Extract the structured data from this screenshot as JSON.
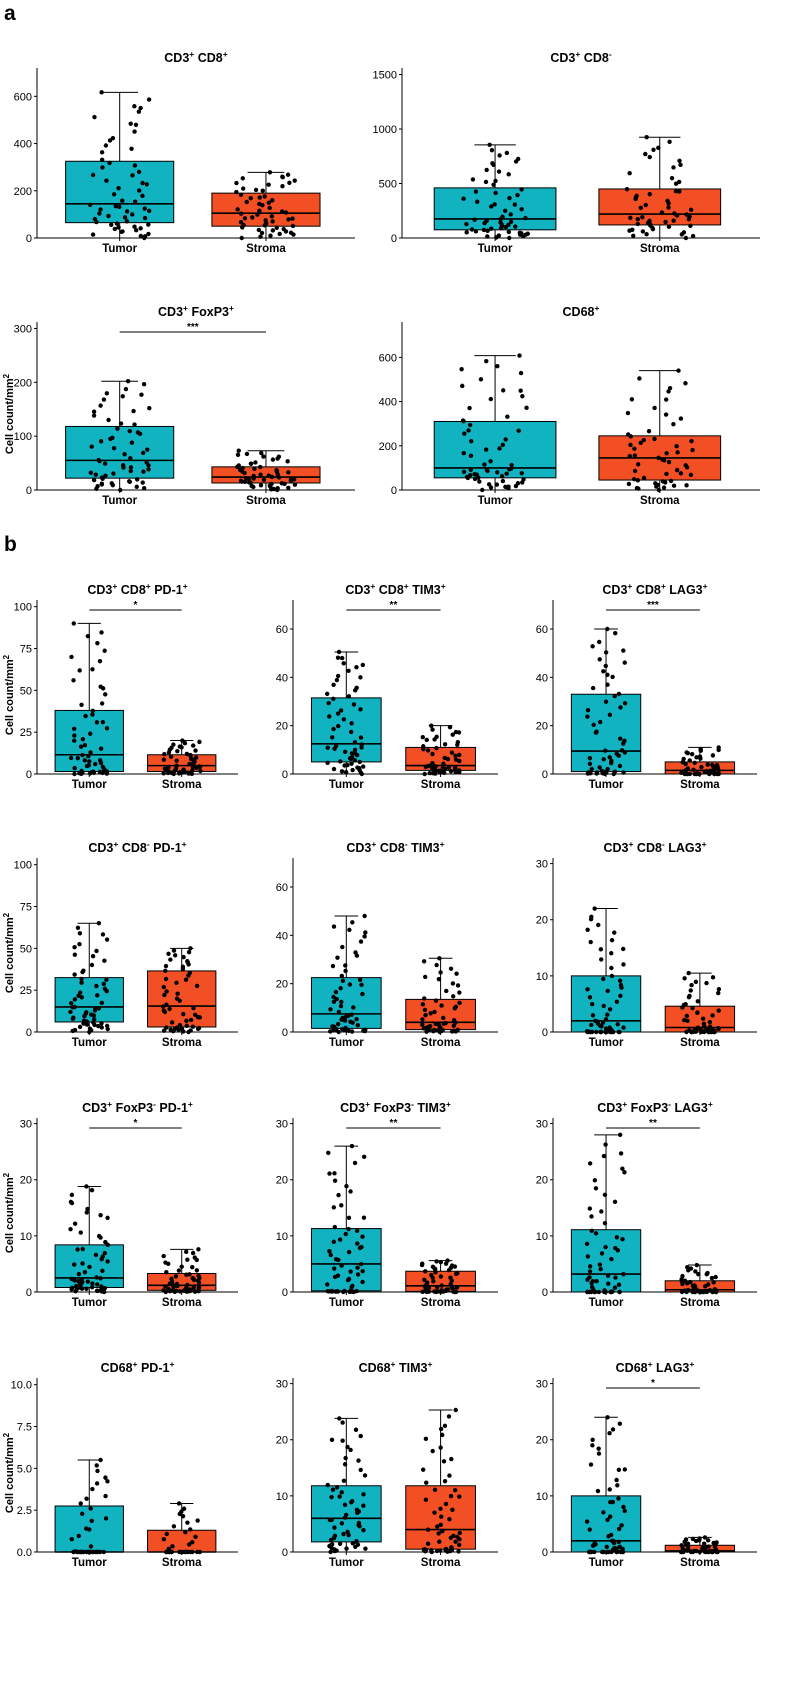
{
  "figure": {
    "panel_a_label": "a",
    "panel_b_label": "b"
  },
  "colors": {
    "tumor": "#12b3c0",
    "stroma": "#f24f25",
    "point": "#000000",
    "axis": "#000000"
  },
  "chart_data": [
    {
      "id": "a1",
      "type": "box",
      "title": "CD3+ CD8+",
      "title_parts": [
        [
          "CD3",
          ""
        ],
        [
          "+",
          "sup"
        ],
        [
          " CD8",
          ""
        ],
        [
          "+",
          "sup"
        ]
      ],
      "ylabel": "",
      "ylim": [
        0,
        720
      ],
      "yticks": [
        0,
        200,
        400,
        600
      ],
      "categories": [
        "Tumor",
        "Stroma"
      ],
      "boxes": [
        {
          "name": "Tumor",
          "min": 0,
          "q1": 65,
          "median": 145,
          "q3": 325,
          "max": 617,
          "n": 60
        },
        {
          "name": "Stroma",
          "min": 0,
          "q1": 50,
          "median": 105,
          "q3": 190,
          "max": 278,
          "n": 55
        }
      ],
      "significance": ""
    },
    {
      "id": "a2",
      "type": "box",
      "title": "CD3+ CD8-",
      "title_parts": [
        [
          "CD3",
          ""
        ],
        [
          "+",
          "sup"
        ],
        [
          " CD8",
          ""
        ],
        [
          "-",
          "sup"
        ]
      ],
      "ylabel": "",
      "ylim": [
        0,
        1560
      ],
      "yticks": [
        0,
        500,
        1000,
        1500
      ],
      "categories": [
        "Tumor",
        "Stroma"
      ],
      "boxes": [
        {
          "name": "Tumor",
          "min": 0,
          "q1": 75,
          "median": 175,
          "q3": 460,
          "max": 855,
          "n": 60
        },
        {
          "name": "Stroma",
          "min": 0,
          "q1": 120,
          "median": 220,
          "q3": 450,
          "max": 925,
          "n": 55
        }
      ],
      "significance": ""
    },
    {
      "id": "a3",
      "type": "box",
      "title": "CD3+ FoxP3+",
      "title_parts": [
        [
          "CD3",
          ""
        ],
        [
          "+",
          "sup"
        ],
        [
          " FoxP3",
          ""
        ],
        [
          "+",
          "sup"
        ]
      ],
      "ylabel": "Cell count/mm2",
      "ylim": [
        0,
        312
      ],
      "yticks": [
        0,
        100,
        200,
        300
      ],
      "categories": [
        "Tumor",
        "Stroma"
      ],
      "boxes": [
        {
          "name": "Tumor",
          "min": 0,
          "q1": 22,
          "median": 55,
          "q3": 118,
          "max": 202,
          "n": 60
        },
        {
          "name": "Stroma",
          "min": 0,
          "q1": 13,
          "median": 24,
          "q3": 43,
          "max": 73,
          "n": 55
        }
      ],
      "significance": "***"
    },
    {
      "id": "a4",
      "type": "box",
      "title": "CD68+",
      "title_parts": [
        [
          "CD68",
          ""
        ],
        [
          "+",
          "sup"
        ]
      ],
      "ylabel": "",
      "ylim": [
        0,
        760
      ],
      "yticks": [
        0,
        200,
        400,
        600
      ],
      "categories": [
        "Tumor",
        "Stroma"
      ],
      "boxes": [
        {
          "name": "Tumor",
          "min": 0,
          "q1": 55,
          "median": 100,
          "q3": 310,
          "max": 608,
          "n": 60
        },
        {
          "name": "Stroma",
          "min": 0,
          "q1": 45,
          "median": 145,
          "q3": 245,
          "max": 540,
          "n": 55
        }
      ],
      "significance": ""
    },
    {
      "id": "b1",
      "type": "box",
      "title": "CD3+ CD8+ PD-1+",
      "title_parts": [
        [
          "CD3",
          ""
        ],
        [
          "+",
          "sup"
        ],
        [
          " CD8",
          ""
        ],
        [
          "+",
          "sup"
        ],
        [
          " PD-1",
          ""
        ],
        [
          "+",
          "sup"
        ]
      ],
      "ylabel": "Cell count/mm2",
      "ylim": [
        0,
        104
      ],
      "yticks": [
        0,
        25,
        50,
        75,
        100
      ],
      "ytick_labels": [
        "0",
        "25",
        "50",
        "75",
        "100"
      ],
      "categories": [
        "Tumor",
        "Stroma"
      ],
      "boxes": [
        {
          "name": "Tumor",
          "min": 0,
          "q1": 1.5,
          "median": 11.5,
          "q3": 38,
          "max": 90,
          "n": 60
        },
        {
          "name": "Stroma",
          "min": 0,
          "q1": 1.5,
          "median": 5,
          "q3": 11.5,
          "max": 20,
          "n": 55
        }
      ],
      "significance": "*"
    },
    {
      "id": "b2",
      "type": "box",
      "title": "CD3+ CD8+ TIM3+",
      "title_parts": [
        [
          "CD3",
          ""
        ],
        [
          "+",
          "sup"
        ],
        [
          " CD8",
          ""
        ],
        [
          "+",
          "sup"
        ],
        [
          " TIM3",
          ""
        ],
        [
          "+",
          "sup"
        ]
      ],
      "ylabel": "",
      "ylim": [
        0,
        72
      ],
      "yticks": [
        0,
        20,
        40,
        60
      ],
      "ytick_labels": [
        "0",
        "20",
        "40",
        "60"
      ],
      "categories": [
        "Tumor",
        "Stroma"
      ],
      "boxes": [
        {
          "name": "Tumor",
          "min": 0,
          "q1": 5,
          "median": 12.5,
          "q3": 31.5,
          "max": 50.5,
          "n": 60
        },
        {
          "name": "Stroma",
          "min": 0,
          "q1": 1.5,
          "median": 3.5,
          "q3": 11,
          "max": 20,
          "n": 55
        }
      ],
      "significance": "**"
    },
    {
      "id": "b3",
      "type": "box",
      "title": "CD3+ CD8+ LAG3+",
      "title_parts": [
        [
          "CD3",
          ""
        ],
        [
          "+",
          "sup"
        ],
        [
          " CD8",
          ""
        ],
        [
          "+",
          "sup"
        ],
        [
          " LAG3",
          ""
        ],
        [
          "+",
          "sup"
        ]
      ],
      "ylabel": "",
      "ylim": [
        0,
        72
      ],
      "yticks": [
        0,
        20,
        40,
        60
      ],
      "ytick_labels": [
        "0",
        "20",
        "40",
        "60"
      ],
      "categories": [
        "Tumor",
        "Stroma"
      ],
      "boxes": [
        {
          "name": "Tumor",
          "min": 0,
          "q1": 1,
          "median": 9.5,
          "q3": 33,
          "max": 60,
          "n": 60
        },
        {
          "name": "Stroma",
          "min": 0,
          "q1": 0,
          "median": 1.5,
          "q3": 5,
          "max": 11,
          "n": 55
        }
      ],
      "significance": "***"
    },
    {
      "id": "b4",
      "type": "box",
      "title": "CD3+ CD8- PD-1+",
      "title_parts": [
        [
          "CD3",
          ""
        ],
        [
          "+",
          "sup"
        ],
        [
          " CD8",
          ""
        ],
        [
          "-",
          "sup"
        ],
        [
          " PD-1",
          ""
        ],
        [
          "+",
          "sup"
        ]
      ],
      "ylabel": "Cell count/mm2",
      "ylim": [
        0,
        104
      ],
      "yticks": [
        0,
        25,
        50,
        75,
        100
      ],
      "ytick_labels": [
        "0",
        "25",
        "50",
        "75",
        "100"
      ],
      "categories": [
        "Tumor",
        "Stroma"
      ],
      "boxes": [
        {
          "name": "Tumor",
          "min": 0,
          "q1": 6,
          "median": 15,
          "q3": 32.5,
          "max": 65,
          "n": 60
        },
        {
          "name": "Stroma",
          "min": 0,
          "q1": 3,
          "median": 15.5,
          "q3": 36.5,
          "max": 50,
          "n": 55
        }
      ],
      "significance": ""
    },
    {
      "id": "b5",
      "type": "box",
      "title": "CD3+ CD8- TIM3+",
      "title_parts": [
        [
          "CD3",
          ""
        ],
        [
          "+",
          "sup"
        ],
        [
          " CD8",
          ""
        ],
        [
          "-",
          "sup"
        ],
        [
          " TIM3",
          ""
        ],
        [
          "+",
          "sup"
        ]
      ],
      "ylabel": "",
      "ylim": [
        0,
        72
      ],
      "yticks": [
        0,
        20,
        40,
        60
      ],
      "ytick_labels": [
        "0",
        "20",
        "40",
        "60"
      ],
      "categories": [
        "Tumor",
        "Stroma"
      ],
      "boxes": [
        {
          "name": "Tumor",
          "min": 0,
          "q1": 1.5,
          "median": 7.5,
          "q3": 22.5,
          "max": 48,
          "n": 60
        },
        {
          "name": "Stroma",
          "min": 0,
          "q1": 1,
          "median": 4,
          "q3": 13.5,
          "max": 30.5,
          "n": 55
        }
      ],
      "significance": ""
    },
    {
      "id": "b6",
      "type": "box",
      "title": "CD3+ CD8- LAG3+",
      "title_parts": [
        [
          "CD3",
          ""
        ],
        [
          "+",
          "sup"
        ],
        [
          " CD8",
          ""
        ],
        [
          "-",
          "sup"
        ],
        [
          " LAG3",
          ""
        ],
        [
          "+",
          "sup"
        ]
      ],
      "ylabel": "",
      "ylim": [
        0,
        31
      ],
      "yticks": [
        0,
        10,
        20,
        30
      ],
      "ytick_labels": [
        "0",
        "10",
        "20",
        "30"
      ],
      "categories": [
        "Tumor",
        "Stroma"
      ],
      "boxes": [
        {
          "name": "Tumor",
          "min": 0,
          "q1": 0,
          "median": 2,
          "q3": 10,
          "max": 22,
          "n": 60
        },
        {
          "name": "Stroma",
          "min": 0,
          "q1": 0,
          "median": 0.8,
          "q3": 4.6,
          "max": 10.5,
          "n": 55
        }
      ],
      "significance": ""
    },
    {
      "id": "b7",
      "type": "box",
      "title": "CD3+ FoxP3- PD-1+",
      "title_parts": [
        [
          "CD3",
          ""
        ],
        [
          "+",
          "sup"
        ],
        [
          " FoxP3",
          ""
        ],
        [
          "-",
          "sup"
        ],
        [
          " PD-1",
          ""
        ],
        [
          "+",
          "sup"
        ]
      ],
      "ylabel": "Cell count/mm2",
      "ylim": [
        0,
        31
      ],
      "yticks": [
        0,
        10,
        20,
        30
      ],
      "ytick_labels": [
        "0",
        "10",
        "20",
        "30"
      ],
      "categories": [
        "Tumor",
        "Stroma"
      ],
      "boxes": [
        {
          "name": "Tumor",
          "min": 0,
          "q1": 0.8,
          "median": 2.5,
          "q3": 8.4,
          "max": 18.8,
          "n": 60
        },
        {
          "name": "Stroma",
          "min": 0,
          "q1": 0.3,
          "median": 1.2,
          "q3": 3.3,
          "max": 7.6,
          "n": 55
        }
      ],
      "significance": "*"
    },
    {
      "id": "b8",
      "type": "box",
      "title": "CD3+ FoxP3- TIM3+",
      "title_parts": [
        [
          "CD3",
          ""
        ],
        [
          "+",
          "sup"
        ],
        [
          " FoxP3",
          ""
        ],
        [
          "-",
          "sup"
        ],
        [
          " TIM3",
          ""
        ],
        [
          "+",
          "sup"
        ]
      ],
      "ylabel": "",
      "ylim": [
        0,
        31
      ],
      "yticks": [
        0,
        10,
        20,
        30
      ],
      "ytick_labels": [
        "0",
        "10",
        "20",
        "30"
      ],
      "categories": [
        "Tumor",
        "Stroma"
      ],
      "boxes": [
        {
          "name": "Tumor",
          "min": 0,
          "q1": 0.2,
          "median": 5,
          "q3": 11.3,
          "max": 26,
          "n": 60
        },
        {
          "name": "Stroma",
          "min": 0,
          "q1": 0.1,
          "median": 1.1,
          "q3": 3.7,
          "max": 5.6,
          "n": 55
        }
      ],
      "significance": "**"
    },
    {
      "id": "b9",
      "type": "box",
      "title": "CD3+ FoxP3- LAG3+",
      "title_parts": [
        [
          "CD3",
          ""
        ],
        [
          "+",
          "sup"
        ],
        [
          " FoxP3",
          ""
        ],
        [
          "-",
          "sup"
        ],
        [
          " LAG3",
          ""
        ],
        [
          "+",
          "sup"
        ]
      ],
      "ylabel": "",
      "ylim": [
        0,
        31
      ],
      "yticks": [
        0,
        10,
        20,
        30
      ],
      "ytick_labels": [
        "0",
        "10",
        "20",
        "30"
      ],
      "categories": [
        "Tumor",
        "Stroma"
      ],
      "boxes": [
        {
          "name": "Tumor",
          "min": 0,
          "q1": 0,
          "median": 3.2,
          "q3": 11.1,
          "max": 28,
          "n": 60
        },
        {
          "name": "Stroma",
          "min": 0,
          "q1": 0,
          "median": 0.4,
          "q3": 2,
          "max": 4.8,
          "n": 55
        }
      ],
      "significance": "**"
    },
    {
      "id": "b10",
      "type": "box",
      "title": "CD68+ PD-1+",
      "title_parts": [
        [
          "CD68",
          ""
        ],
        [
          "+",
          "sup"
        ],
        [
          " PD-1",
          ""
        ],
        [
          "+",
          "sup"
        ]
      ],
      "ylabel": "Cell count/mm2",
      "ylim": [
        0,
        10.4
      ],
      "yticks": [
        0,
        2.5,
        5,
        7.5,
        10
      ],
      "ytick_labels": [
        "0.0",
        "2.5",
        "5.0",
        "7.5",
        "10.0"
      ],
      "categories": [
        "Tumor",
        "Stroma"
      ],
      "boxes": [
        {
          "name": "Tumor",
          "min": 0,
          "q1": 0,
          "median": 0,
          "q3": 2.75,
          "max": 5.5,
          "n": 40
        },
        {
          "name": "Stroma",
          "min": 0,
          "q1": 0,
          "median": 0,
          "q3": 1.3,
          "max": 2.9,
          "n": 35
        }
      ],
      "significance": ""
    },
    {
      "id": "b11",
      "type": "box",
      "title": "CD68+ TIM3+",
      "title_parts": [
        [
          "CD68",
          ""
        ],
        [
          "+",
          "sup"
        ],
        [
          " TIM3",
          ""
        ],
        [
          "+",
          "sup"
        ]
      ],
      "ylabel": "",
      "ylim": [
        0,
        31
      ],
      "yticks": [
        0,
        10,
        20,
        30
      ],
      "ytick_labels": [
        "0",
        "10",
        "20",
        "30"
      ],
      "categories": [
        "Tumor",
        "Stroma"
      ],
      "boxes": [
        {
          "name": "Tumor",
          "min": 0,
          "q1": 1.8,
          "median": 6,
          "q3": 11.8,
          "max": 23.8,
          "n": 60
        },
        {
          "name": "Stroma",
          "min": 0,
          "q1": 0.5,
          "median": 4,
          "q3": 11.8,
          "max": 25.3,
          "n": 55
        }
      ],
      "significance": ""
    },
    {
      "id": "b12",
      "type": "box",
      "title": "CD68+ LAG3+",
      "title_parts": [
        [
          "CD68",
          ""
        ],
        [
          "+",
          "sup"
        ],
        [
          " LAG3",
          ""
        ],
        [
          "+",
          "sup"
        ]
      ],
      "ylabel": "",
      "ylim": [
        0,
        31
      ],
      "yticks": [
        0,
        10,
        20,
        30
      ],
      "ytick_labels": [
        "0",
        "10",
        "20",
        "30"
      ],
      "categories": [
        "Tumor",
        "Stroma"
      ],
      "boxes": [
        {
          "name": "Tumor",
          "min": 0,
          "q1": 0,
          "median": 2,
          "q3": 10,
          "max": 24,
          "n": 60
        },
        {
          "name": "Stroma",
          "min": 0,
          "q1": 0,
          "median": 0.2,
          "q3": 1.2,
          "max": 2.6,
          "n": 55
        }
      ],
      "significance": "*"
    }
  ]
}
